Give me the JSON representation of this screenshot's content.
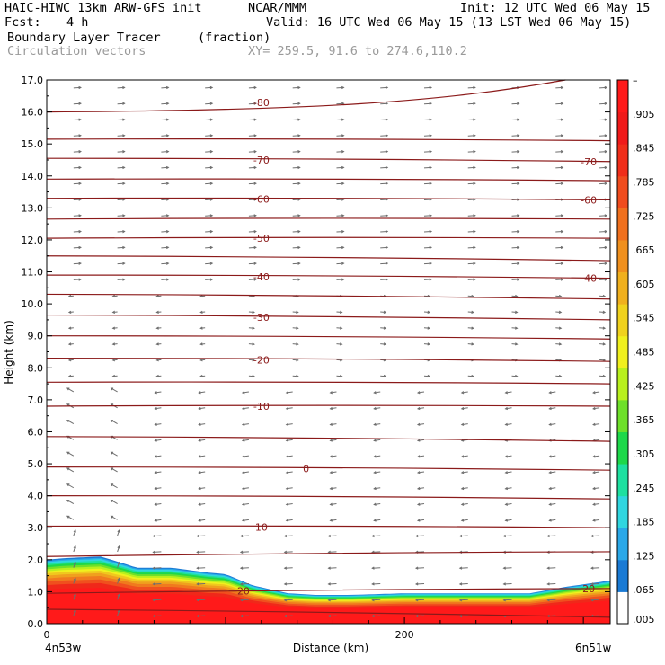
{
  "header": {
    "model": "HAIC-HIWC 13km ARW-GFS init",
    "org": "NCAR/MMM",
    "init": "Init: 12 UTC Wed 06 May 15",
    "fcst_label": "Fcst:",
    "fcst_value": "4 h",
    "valid": "Valid: 16 UTC Wed 06 May 15 (13 LST Wed 06 May 15)",
    "field_name": "Boundary Layer Tracer",
    "field_units": "(fraction)",
    "vector_label": "Circulation vectors",
    "xy_label": "XY= 259.5, 91.6 to 274.6,110.2"
  },
  "chart_data": {
    "type": "heatmap",
    "title": "Boundary Layer Tracer",
    "xlabel": "Distance (km)",
    "ylabel": "Height (km)",
    "xlim": [
      0,
      315
    ],
    "ylim": [
      0,
      17
    ],
    "x_ticks": [
      {
        "value": 0,
        "label": "0"
      },
      {
        "value": 200,
        "label": "200"
      }
    ],
    "x_endpoint_labels": {
      "left": "4n53w",
      "right": "6n51w"
    },
    "y_ticks": [
      0,
      1,
      2,
      3,
      4,
      5,
      6,
      7,
      8,
      9,
      10,
      11,
      12,
      13,
      14,
      15,
      16,
      17
    ],
    "y_tick_labels": [
      "0.0",
      "1.0",
      "2.0",
      "3.0",
      "4.0",
      "5.0",
      "6.0",
      "7.0",
      "8.0",
      "9.0",
      "10.0",
      "11.0",
      "12.0",
      "13.0",
      "14.0",
      "15.0",
      "16.0",
      "17.0"
    ],
    "colorbar": {
      "labels": [
        "–",
        ".905",
        ".845",
        ".785",
        ".725",
        ".665",
        ".605",
        ".545",
        ".485",
        ".425",
        ".365",
        ".305",
        ".245",
        ".185",
        ".125",
        ".065",
        ".005"
      ],
      "colors_bottom_to_top": [
        "#ffffff",
        "#1a7ad4",
        "#2aa8e8",
        "#30d6e0",
        "#1ee0a0",
        "#1ed84a",
        "#6ee02a",
        "#b8f01e",
        "#f0f01e",
        "#f0d21e",
        "#f0b01e",
        "#f0901e",
        "#f0701e",
        "#f04c1e",
        "#f02e1a",
        "#f01a1a",
        "#ff1a1a"
      ]
    },
    "tracer_layer_top": {
      "x": [
        0,
        10,
        30,
        45,
        50,
        70,
        90,
        100,
        115,
        135,
        150,
        170,
        200,
        240,
        270,
        290,
        315
      ],
      "top_km": [
        2.0,
        2.05,
        2.1,
        1.85,
        1.75,
        1.75,
        1.6,
        1.55,
        1.2,
        0.95,
        0.9,
        0.9,
        0.95,
        0.95,
        0.95,
        1.15,
        1.35
      ],
      "note_values_are_fraction_above_0.905_below_top": true
    },
    "contour_series": [
      {
        "label": "-80",
        "y_left": 16.0,
        "y_right": 16.6
      },
      {
        "label": "",
        "y_left": 15.15,
        "y_right": 15.1
      },
      {
        "label": "-70",
        "y_left": 14.55,
        "y_right": 14.45
      },
      {
        "label": "",
        "y_left": 13.9,
        "y_right": 13.85
      },
      {
        "label": "-60",
        "y_left": 13.3,
        "y_right": 13.25
      },
      {
        "label": "",
        "y_left": 12.65,
        "y_right": 12.65
      },
      {
        "label": "-50",
        "y_left": 12.05,
        "y_right": 12.05
      },
      {
        "label": "",
        "y_left": 11.5,
        "y_right": 11.35
      },
      {
        "label": "-40",
        "y_left": 10.9,
        "y_right": 10.8
      },
      {
        "label": "",
        "y_left": 10.3,
        "y_right": 10.15
      },
      {
        "label": "-30",
        "y_left": 9.65,
        "y_right": 9.5
      },
      {
        "label": "",
        "y_left": 9.0,
        "y_right": 8.9
      },
      {
        "label": "-20",
        "y_left": 8.3,
        "y_right": 8.2
      },
      {
        "label": "",
        "y_left": 7.55,
        "y_right": 7.5
      },
      {
        "label": "-10",
        "y_left": 6.8,
        "y_right": 6.8
      },
      {
        "label": "",
        "y_left": 5.85,
        "y_right": 5.7
      },
      {
        "label": "0",
        "y_left": 4.9,
        "y_right": 4.8
      },
      {
        "label": "",
        "y_left": 4.0,
        "y_right": 3.9
      },
      {
        "label": "10",
        "y_left": 3.05,
        "y_right": 3.0
      },
      {
        "label": "",
        "y_left": 2.1,
        "y_right": 2.25
      },
      {
        "label": "20",
        "y_left": 0.95,
        "y_right": 1.1
      },
      {
        "label": "",
        "y_left": 0.45,
        "y_right": 0.2
      }
    ]
  }
}
